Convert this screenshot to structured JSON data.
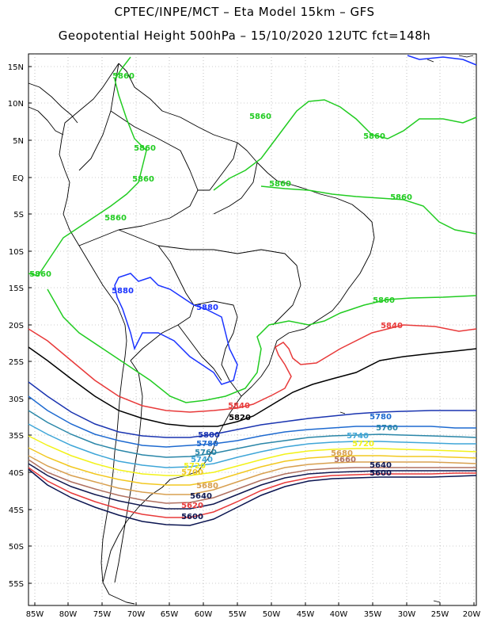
{
  "title_line1": "CPTEC/INPE/MCT –  Eta Model 15km – GFS",
  "title_line2": "Geopotential Height 500hPa – 15/10/2020 12UTC fct=148h",
  "lat_ticks": [
    "15N",
    "10N",
    "5N",
    "EQ",
    "5S",
    "10S",
    "15S",
    "20S",
    "25S",
    "30S",
    "35S",
    "40S",
    "45S",
    "50S",
    "55S"
  ],
  "lon_ticks": [
    "85W",
    "80W",
    "75W",
    "70W",
    "65W",
    "60W",
    "55W",
    "50W",
    "45W",
    "40W",
    "35W",
    "30W",
    "25W",
    "20W"
  ],
  "contour_colors": {
    "5880": "#1a33ff",
    "5860": "#22cc22",
    "5840": "#e83a3a",
    "5820": "#000000",
    "5800": "#1a34b0",
    "5780": "#1e6ad0",
    "5760": "#2a86a8",
    "5740": "#3fa6d8",
    "5720": "#f2f21a",
    "5700": "#f2c820",
    "5680": "#d8a050",
    "5660": "#b07060",
    "5640": "#101850",
    "5620": "#e83a3a",
    "5600": "#0a1450"
  },
  "contour_labels": [
    "5860",
    "5860",
    "5860",
    "5860",
    "5860",
    "5860",
    "5860",
    "5860",
    "5860",
    "5860",
    "5880",
    "5880",
    "5840",
    "5840",
    "5820",
    "5780",
    "5760",
    "5800",
    "5780",
    "5760",
    "5740",
    "5720",
    "5740",
    "5720",
    "5700",
    "5680",
    "5660",
    "5680",
    "5640",
    "5600",
    "5640",
    "5620",
    "5600"
  ]
}
